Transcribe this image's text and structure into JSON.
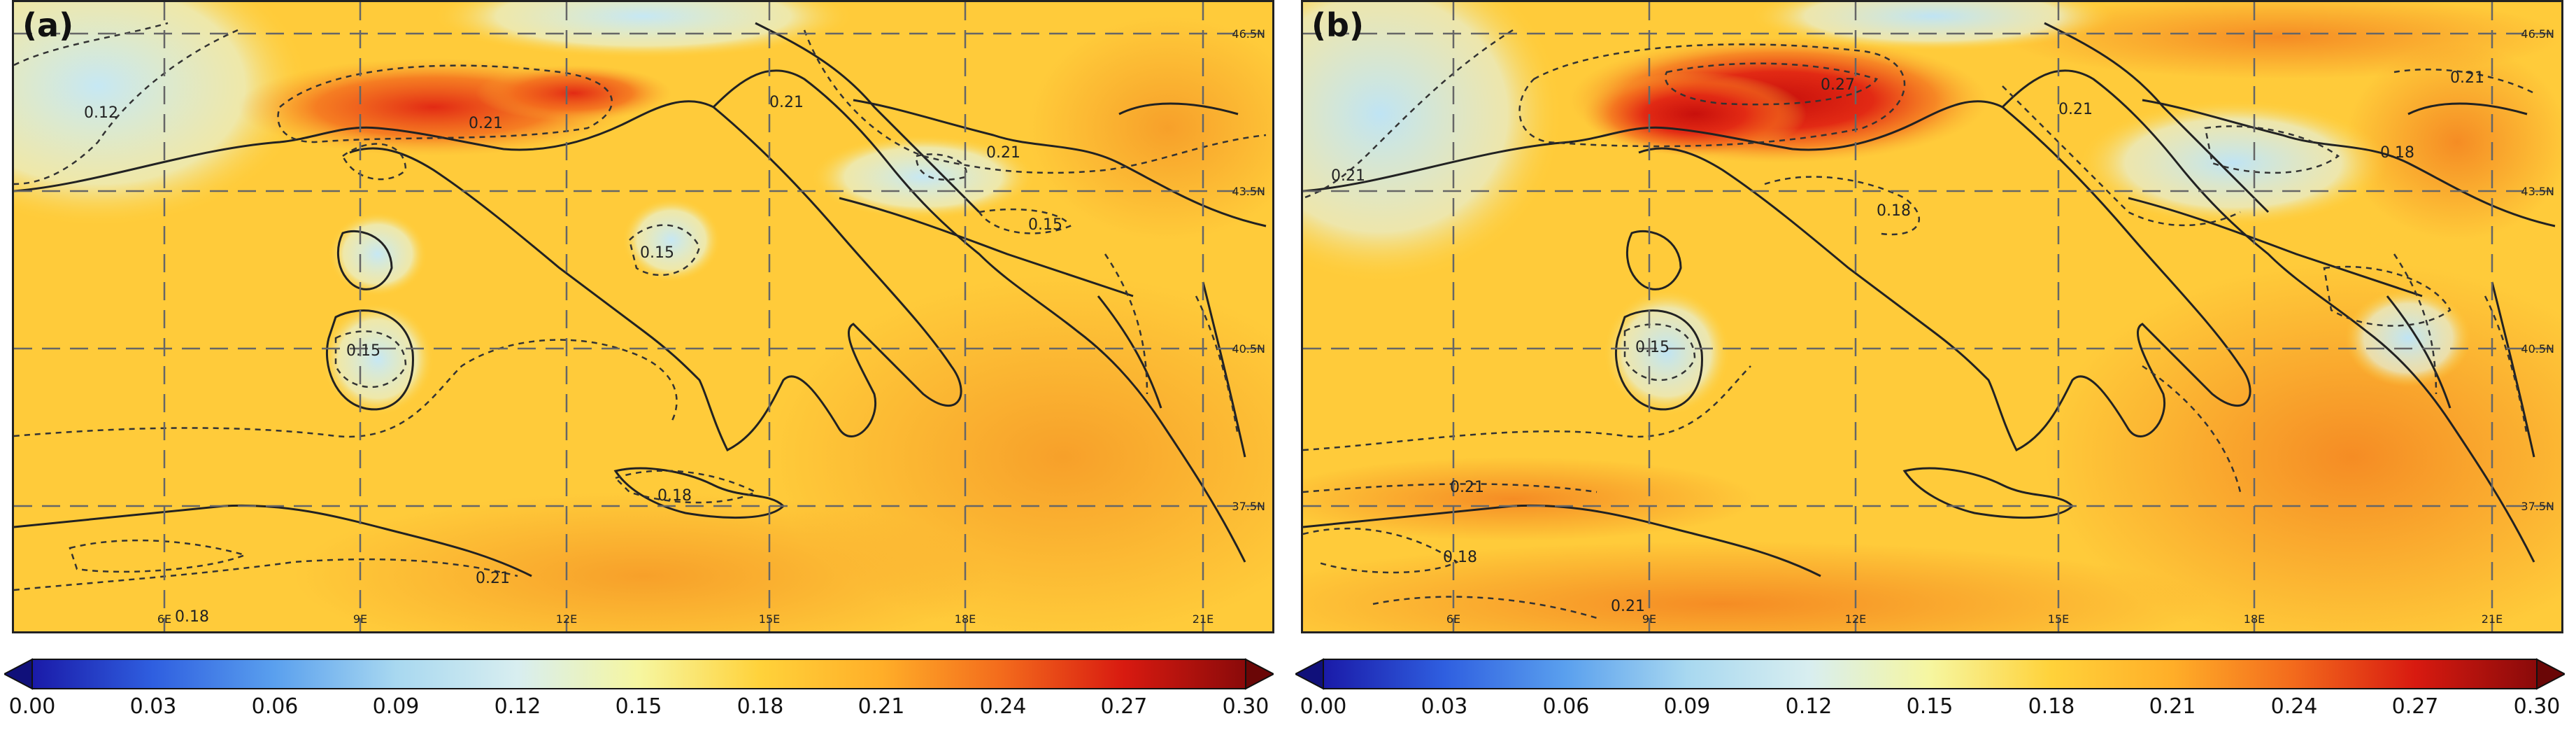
{
  "panels": [
    {
      "label": "(a)",
      "lat_labels": [
        "46.5N",
        "43.5N",
        "40.5N",
        "37.5N"
      ],
      "lon_labels": [
        "6E",
        "9E",
        "12E",
        "15E",
        "18E",
        "21E"
      ],
      "contour_labels": [
        "0.12",
        "0.21",
        "0.21",
        "0.21",
        "0.15",
        "0.15",
        "0.15",
        "0.18",
        "0.21",
        "0.18"
      ]
    },
    {
      "label": "(b)",
      "lat_labels": [
        "46.5N",
        "43.5N",
        "40.5N",
        "37.5N"
      ],
      "lon_labels": [
        "6E",
        "9E",
        "12E",
        "15E",
        "18E",
        "21E"
      ],
      "contour_labels": [
        "0.27",
        "0.21",
        "0.21",
        "0.18",
        "0.18",
        "0.15",
        "0.21",
        "0.18",
        "0.21",
        "0.21"
      ]
    }
  ],
  "colorbar": {
    "ticks": [
      "0.00",
      "0.03",
      "0.06",
      "0.09",
      "0.12",
      "0.15",
      "0.18",
      "0.21",
      "0.24",
      "0.27",
      "0.30"
    ],
    "colors": [
      "#1a1aa8",
      "#2f5fe0",
      "#5aa0ee",
      "#a8d8f0",
      "#e0f0f0",
      "#f6f6a0",
      "#ffd23a",
      "#ffae28",
      "#f36a1c",
      "#d81a10",
      "#8a0a0a"
    ]
  }
}
